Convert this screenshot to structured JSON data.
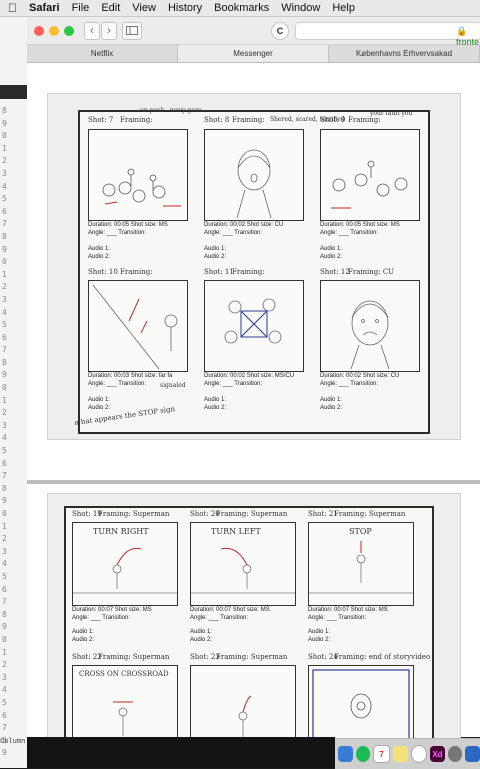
{
  "menubar": {
    "app": "Safari",
    "items": [
      "File",
      "Edit",
      "View",
      "History",
      "Bookmarks",
      "Window",
      "Help"
    ]
  },
  "toolbar": {
    "url": "🔒 fronte"
  },
  "tabs": [
    "Netflix",
    "Messenger",
    "Københavns Erhvervsakad"
  ],
  "gutter": {
    "line_digits": [
      "8",
      "9",
      "0",
      "1",
      "2",
      "3",
      "4",
      "5",
      "6",
      "7",
      "8",
      "9",
      "0",
      "1",
      "2",
      "3",
      "4",
      "5",
      "6",
      "7",
      "8",
      "9",
      "0",
      "1",
      "2",
      "3",
      "4",
      "5",
      "6",
      "7",
      "8",
      "9",
      "0",
      "1",
      "2",
      "3",
      "4",
      "5",
      "6",
      "7",
      "8",
      "9",
      "0",
      "1",
      "2",
      "3",
      "4",
      "5",
      "6",
      "7",
      "8",
      "9"
    ],
    "status": "Column"
  },
  "sheet1": {
    "frames": [
      {
        "shot": "Shot: 7",
        "framing": "Framing:",
        "note": "un pack - wavy gaze",
        "duration": "Duration: 00:05  Shot size: MS",
        "angle": "Angle: ___ Transition:"
      },
      {
        "shot": "Shot: 8",
        "framing": "Framing:",
        "note": "Shered, scared, terrified",
        "duration": "Duration: 00:02  Shot size: CU",
        "angle": "Angle: ___ Transition:"
      },
      {
        "shot": "Shot: 9",
        "framing": "Framing:",
        "note": "your fault you",
        "duration": "Duration: 00:05  Shot size: MS",
        "angle": "Angle: ___ Transition:"
      },
      {
        "shot": "Shot: 10",
        "framing": "Framing:",
        "note": "",
        "duration": "Duration: 00:03  Shot size: far fa",
        "angle": "Angle: ___ Transition:"
      },
      {
        "shot": "Shot: 11",
        "framing": "Framing:",
        "note": "",
        "duration": "Duration: 00:02  Shot size: MS/CU",
        "angle": "Angle: ___ Transition:"
      },
      {
        "shot": "Shot: 12",
        "framing": "Framing: CU",
        "note": "",
        "duration": "Duration: 00:02  Shot size: CU",
        "angle": "Angle: ___ Transition:"
      }
    ],
    "audio1": "Audio 1:",
    "audio2": "Audio 2:",
    "margin_note": "a hat appears the STOP sign",
    "shot10_note": "signaled"
  },
  "sheet2": {
    "frames": [
      {
        "shot": "Shot: 19",
        "framing": "Framing: Superman",
        "panel": "TURN RIGHT",
        "duration": "Duration: 00:07  Shot size: MS",
        "angle": "Angle: ___ Transition:"
      },
      {
        "shot": "Shot: 20",
        "framing": "Framing: Superman",
        "panel": "TURN LEFT",
        "duration": "Duration: 00:07  Shot size: MS",
        "angle": "Angle: ___ Transition:"
      },
      {
        "shot": "Shot: 21",
        "framing": "Framing: Superman",
        "panel": "STOP",
        "duration": "Duration: 00:07  Shot size: MS",
        "angle": "Angle: ___ Transition:"
      },
      {
        "shot": "Shot: 22",
        "framing": "Framing: Superman",
        "panel": "CROSS ON CROSSROAD",
        "duration": "",
        "angle": ""
      },
      {
        "shot": "Shot: 23",
        "framing": "Framing: Superman",
        "panel": "",
        "duration": "",
        "angle": ""
      },
      {
        "shot": "Shot: 24",
        "framing": "Framing: end of storyvideo",
        "panel": "",
        "duration": "",
        "angle": ""
      }
    ],
    "audio1": "Audio 1:",
    "audio2": "Audio 2:"
  },
  "dock": {
    "calendar_day": "7",
    "xd_label": "Xd"
  },
  "colors": {
    "close": "#ff5f57",
    "minimize": "#febc2e",
    "zoom": "#28c840",
    "sketch_red": "#c0282a",
    "sketch_blue": "#2a3a9a"
  }
}
